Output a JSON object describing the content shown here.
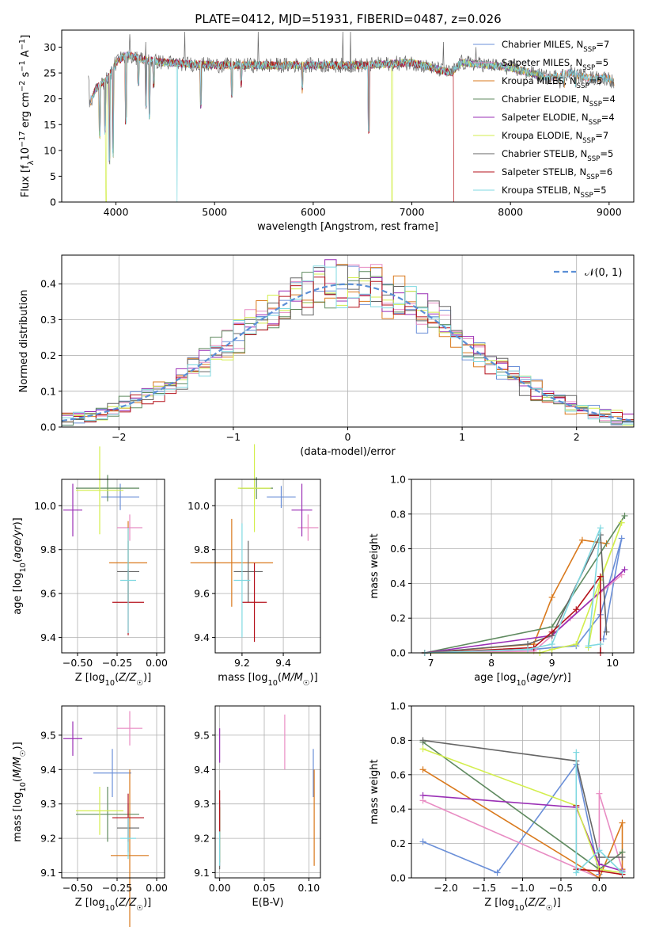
{
  "figure_title": "PLATE=0412, MJD=51931, FIBERID=0487, z=0.026",
  "colors": [
    "#6a8fd8",
    "#e88cc3",
    "#d9791c",
    "#5f8a5f",
    "#9a2fb5",
    "#d3ee4d",
    "#666666",
    "#b5121b",
    "#7fd8e0"
  ],
  "chart_data": [
    {
      "id": "spectrum",
      "type": "line",
      "xlabel": "wavelength [Angstrom, rest frame]",
      "ylabel": "Flux [f_λ 10^-17 erg cm^-2 s^-1 A^-1]",
      "xlim": [
        3450,
        9250
      ],
      "ylim": [
        0,
        33.3
      ],
      "xticks": [
        4000,
        5000,
        6000,
        7000,
        8000,
        9000
      ],
      "yticks": [
        0,
        5,
        10,
        15,
        20,
        25,
        30
      ],
      "grid": false,
      "legend_position": "top-right",
      "series": [
        {
          "name": "Chabrier MILES, N_SSP=7"
        },
        {
          "name": "Salpeter MILES, N_SSP=5"
        },
        {
          "name": "Kroupa MILES, N_SSP=5"
        },
        {
          "name": "Chabrier ELODIE, N_SSP=4"
        },
        {
          "name": "Salpeter ELODIE, N_SSP=4"
        },
        {
          "name": "Kroupa ELODIE, N_SSP=7"
        },
        {
          "name": "Chabrier STELIB, N_SSP=5"
        },
        {
          "name": "Salpeter STELIB, N_SSP=6"
        },
        {
          "name": "Kroupa STELIB, N_SSP=5"
        }
      ],
      "continuum": [
        [
          3730,
          19
        ],
        [
          3800,
          22
        ],
        [
          3900,
          23.5
        ],
        [
          4000,
          27
        ],
        [
          4100,
          28.5
        ],
        [
          4300,
          27.5
        ],
        [
          4500,
          27
        ],
        [
          5000,
          26.5
        ],
        [
          5500,
          26.5
        ],
        [
          6000,
          26.5
        ],
        [
          6500,
          26.5
        ],
        [
          7000,
          27
        ],
        [
          7200,
          26
        ],
        [
          7400,
          25
        ],
        [
          7500,
          27
        ],
        [
          7800,
          26.5
        ],
        [
          8000,
          26
        ],
        [
          8200,
          25
        ],
        [
          8400,
          24
        ],
        [
          8600,
          25
        ],
        [
          8800,
          24
        ],
        [
          9000,
          24
        ],
        [
          9050,
          23
        ]
      ],
      "absorption_dips": [
        [
          3835,
          12
        ],
        [
          3890,
          13
        ],
        [
          3934,
          7
        ],
        [
          3970,
          8.5
        ],
        [
          4101,
          15
        ],
        [
          4227,
          22
        ],
        [
          4304,
          18
        ],
        [
          4340,
          16
        ],
        [
          4383,
          22
        ],
        [
          4861,
          18
        ],
        [
          5175,
          20
        ],
        [
          5270,
          22
        ],
        [
          5890,
          21
        ],
        [
          6563,
          13
        ],
        [
          8498,
          22
        ],
        [
          8542,
          22
        ],
        [
          8662,
          22
        ]
      ],
      "emission_spikes": [
        [
          4140,
          32.5
        ],
        [
          4300,
          31
        ],
        [
          4700,
          33
        ],
        [
          5440,
          33
        ],
        [
          6300,
          33
        ],
        [
          6380,
          33
        ],
        [
          7320,
          31
        ],
        [
          7650,
          30
        ]
      ],
      "drops_to_zero": [
        [
          3900,
          "Kroupa ELODIE"
        ],
        [
          4620,
          "Kroupa STELIB"
        ],
        [
          6800,
          "Kroupa ELODIE"
        ],
        [
          7430,
          "Salpeter STELIB"
        ]
      ]
    },
    {
      "id": "residuals",
      "type": "histogram",
      "xlabel": "(data-model)/error",
      "ylabel": "Normed distribution",
      "xlim": [
        -2.5,
        2.5
      ],
      "ylim": [
        0,
        0.48
      ],
      "xticks": [
        -2,
        -1,
        0,
        1,
        2
      ],
      "yticks": [
        0.0,
        0.1,
        0.2,
        0.3,
        0.4
      ],
      "grid": true,
      "legend_position": "top-right",
      "reference_curve": {
        "name": "𝒩(0, 1)",
        "mean": 0,
        "sigma": 1
      },
      "bin_width": 0.1,
      "scatter_amplitude": 0.02
    },
    {
      "id": "age_vs_Z",
      "type": "errorbar",
      "xlabel": "Z [log10(Z/Z☉)]",
      "ylabel": "age [log10(age/yr)]",
      "xlim": [
        -0.6,
        0.05
      ],
      "ylim": [
        9.33,
        10.12
      ],
      "xticks": [
        -0.5,
        -0.25,
        0.0
      ],
      "xticklabels": [
        "−0.50",
        "−0.25",
        "0.00"
      ],
      "yticks": [
        9.4,
        9.6,
        9.8,
        10.0
      ],
      "grid": true,
      "points": [
        {
          "x": -0.23,
          "y": 10.04,
          "xerr": 0.12,
          "yerr": 0.06
        },
        {
          "x": -0.17,
          "y": 9.9,
          "xerr": 0.08,
          "yerr": 0.06
        },
        {
          "x": -0.18,
          "y": 9.74,
          "xerr": 0.12,
          "yerr": 0.19
        },
        {
          "x": -0.31,
          "y": 10.08,
          "xerr": 0.2,
          "yerr": 0.06
        },
        {
          "x": -0.53,
          "y": 9.98,
          "xerr": 0.06,
          "yerr": 0.12
        },
        {
          "x": -0.36,
          "y": 10.07,
          "xerr": 0.15,
          "yerr": 0.2
        },
        {
          "x": -0.18,
          "y": 9.7,
          "xerr": 0.07,
          "yerr": 0.14
        },
        {
          "x": -0.18,
          "y": 9.56,
          "xerr": 0.1,
          "yerr": 0.15
        },
        {
          "x": -0.18,
          "y": 9.66,
          "xerr": 0.05,
          "yerr": 0.24
        }
      ]
    },
    {
      "id": "age_vs_mass",
      "type": "errorbar",
      "xlabel": "mass [log10(M/M☉)]",
      "ylabel": "",
      "xlim": [
        9.07,
        9.58
      ],
      "ylim": [
        9.33,
        10.12
      ],
      "xticks": [
        9.2,
        9.4
      ],
      "xticklabels": [
        "9.2",
        "9.4"
      ],
      "yticks": [
        9.4,
        9.6,
        9.8,
        10.0
      ],
      "grid": true,
      "points": [
        {
          "x": 9.39,
          "y": 10.04,
          "xerr": 0.07,
          "yerr": 0.05
        },
        {
          "x": 9.52,
          "y": 9.9,
          "xerr": 0.05,
          "yerr": 0.06
        },
        {
          "x": 9.15,
          "y": 9.74,
          "xerr": 0.2,
          "yerr": 0.2
        },
        {
          "x": 9.27,
          "y": 10.08,
          "xerr": 0.08,
          "yerr": 0.05
        },
        {
          "x": 9.49,
          "y": 9.98,
          "xerr": 0.05,
          "yerr": 0.12
        },
        {
          "x": 9.26,
          "y": 10.08,
          "xerr": 0.08,
          "yerr": 0.2
        },
        {
          "x": 9.23,
          "y": 9.7,
          "xerr": 0.07,
          "yerr": 0.14
        },
        {
          "x": 9.26,
          "y": 9.56,
          "xerr": 0.06,
          "yerr": 0.18
        },
        {
          "x": 9.2,
          "y": 9.66,
          "xerr": 0.04,
          "yerr": 0.26
        }
      ]
    },
    {
      "id": "massweight_vs_age",
      "type": "line",
      "xlabel": "age [log10(age/yr)]",
      "ylabel": "mass weight",
      "xlim": [
        6.68,
        10.35
      ],
      "ylim": [
        0,
        1.0
      ],
      "xticks": [
        7,
        8,
        9,
        10
      ],
      "yticks": [
        0.0,
        0.2,
        0.4,
        0.6,
        0.8,
        1.0
      ],
      "grid": true,
      "series": [
        {
          "x": [
            6.9,
            8.7,
            9.0,
            9.4,
            9.8,
            10.15,
            9.85
          ],
          "y": [
            0.0,
            0.02,
            0.03,
            0.04,
            0.22,
            0.66,
            0.08
          ]
        },
        {
          "x": [
            6.9,
            8.7,
            9.0,
            9.3,
            10.15
          ],
          "y": [
            0.0,
            0.01,
            0.1,
            0.2,
            0.45
          ]
        },
        {
          "x": [
            6.9,
            8.7,
            9.0,
            9.5,
            9.9
          ],
          "y": [
            0.0,
            0.05,
            0.32,
            0.65,
            0.63
          ]
        },
        {
          "x": [
            6.9,
            9.0,
            10.2
          ],
          "y": [
            0.0,
            0.15,
            0.79
          ]
        },
        {
          "x": [
            6.9,
            9.0,
            10.2
          ],
          "y": [
            0.0,
            0.1,
            0.48
          ]
        },
        {
          "x": [
            6.9,
            8.8,
            9.0,
            9.4,
            10.15,
            9.8,
            9.6
          ],
          "y": [
            0.0,
            0.0,
            0.02,
            0.05,
            0.75,
            0.42,
            0.03
          ]
        },
        {
          "x": [
            6.9,
            8.6,
            9.0,
            9.8,
            9.9
          ],
          "y": [
            0.0,
            0.05,
            0.1,
            0.68,
            0.12
          ]
        },
        {
          "x": [
            6.9,
            8.7,
            9.0,
            9.4,
            9.8,
            9.8
          ],
          "y": [
            0.0,
            0.03,
            0.12,
            0.25,
            0.44,
            0.0
          ]
        },
        {
          "x": [
            6.9,
            8.6,
            9.0,
            9.8,
            9.6,
            9.8
          ],
          "y": [
            0.0,
            0.02,
            0.05,
            0.72,
            0.04,
            0.05
          ]
        }
      ]
    },
    {
      "id": "mass_vs_Z",
      "type": "errorbar",
      "xlabel": "Z [log10(Z/Z☉)]",
      "ylabel": "mass [log10(M/M☉)]",
      "xlim": [
        -0.6,
        0.05
      ],
      "ylim": [
        9.085,
        9.585
      ],
      "xticks": [
        -0.5,
        -0.25,
        0.0
      ],
      "xticklabels": [
        "−0.50",
        "−0.25",
        "0.00"
      ],
      "yticks": [
        9.1,
        9.2,
        9.3,
        9.4,
        9.5
      ],
      "grid": true,
      "points": [
        {
          "x": -0.28,
          "y": 9.39,
          "xerr": 0.12,
          "yerr": 0.07
        },
        {
          "x": -0.17,
          "y": 9.52,
          "xerr": 0.08,
          "yerr": 0.05
        },
        {
          "x": -0.17,
          "y": 9.15,
          "xerr": 0.12,
          "yerr": 0.25
        },
        {
          "x": -0.31,
          "y": 9.27,
          "xerr": 0.2,
          "yerr": 0.08
        },
        {
          "x": -0.53,
          "y": 9.49,
          "xerr": 0.06,
          "yerr": 0.05
        },
        {
          "x": -0.36,
          "y": 9.28,
          "xerr": 0.15,
          "yerr": 0.07
        },
        {
          "x": -0.18,
          "y": 9.23,
          "xerr": 0.07,
          "yerr": 0.07
        },
        {
          "x": -0.18,
          "y": 9.26,
          "xerr": 0.1,
          "yerr": 0.07
        },
        {
          "x": -0.18,
          "y": 9.2,
          "xerr": 0.05,
          "yerr": 0.06
        }
      ]
    },
    {
      "id": "mass_vs_EBV",
      "type": "errorbar",
      "xlabel": "E(B-V)",
      "ylabel": "",
      "xlim": [
        -0.005,
        0.113
      ],
      "ylim": [
        9.085,
        9.585
      ],
      "xticks": [
        0.0,
        0.05,
        0.1
      ],
      "xticklabels": [
        "0.00",
        "0.05",
        "0.10"
      ],
      "yticks": [
        9.1,
        9.2,
        9.3,
        9.4,
        9.5
      ],
      "grid": true,
      "points": [
        {
          "x": 0.105,
          "y": 9.39,
          "xerr": 0,
          "yerr": 0.07
        },
        {
          "x": 0.073,
          "y": 9.48,
          "xerr": 0,
          "yerr": 0.08
        },
        {
          "x": 0.106,
          "y": 9.26,
          "xerr": 0,
          "yerr": 0.14
        },
        {
          "x": 0.0,
          "y": 9.21,
          "xerr": 0,
          "yerr": 0.08
        },
        {
          "x": 0.0,
          "y": 9.47,
          "xerr": 0,
          "yerr": 0.05
        },
        {
          "x": 0.0,
          "y": 9.21,
          "xerr": 0,
          "yerr": 0.08
        },
        {
          "x": 0.0,
          "y": 9.21,
          "xerr": 0,
          "yerr": 0.1
        },
        {
          "x": 0.0,
          "y": 9.28,
          "xerr": 0,
          "yerr": 0.06
        },
        {
          "x": 0.0,
          "y": 9.17,
          "xerr": 0,
          "yerr": 0.05
        }
      ]
    },
    {
      "id": "massweight_vs_Z",
      "type": "line",
      "xlabel": "Z [log10(Z/Z☉)]",
      "ylabel": "mass weight",
      "xlim": [
        -2.45,
        0.45
      ],
      "ylim": [
        0,
        1.0
      ],
      "xticks": [
        -2.0,
        -1.5,
        -1.0,
        -0.5,
        0.0
      ],
      "xticklabels": [
        "−2.0",
        "−1.5",
        "−1.0",
        "−0.5",
        "0.0"
      ],
      "yticks": [
        0.0,
        0.2,
        0.4,
        0.6,
        0.8,
        1.0
      ],
      "grid": true,
      "series": [
        {
          "x": [
            -2.3,
            -1.33,
            -0.3,
            0.0,
            0.0
          ],
          "y": [
            0.21,
            0.03,
            0.66,
            0.02,
            0.08
          ]
        },
        {
          "x": [
            -2.3,
            0.0,
            0.0,
            0.3,
            0.3
          ],
          "y": [
            0.45,
            0.0,
            0.49,
            0.05,
            0.03
          ]
        },
        {
          "x": [
            -2.3,
            0.0,
            0.3,
            0.3
          ],
          "y": [
            0.63,
            0.0,
            0.32,
            0.05
          ]
        },
        {
          "x": [
            -2.3,
            0.0,
            0.3
          ],
          "y": [
            0.79,
            0.05,
            0.15
          ]
        },
        {
          "x": [
            -2.3,
            -0.3,
            0.0,
            0.3
          ],
          "y": [
            0.48,
            0.41,
            0.08,
            0.04
          ]
        },
        {
          "x": [
            -2.3,
            -0.3,
            0.0,
            0.3
          ],
          "y": [
            0.75,
            0.42,
            0.05,
            0.03
          ]
        },
        {
          "x": [
            -2.3,
            -0.3,
            0.0,
            0.3
          ],
          "y": [
            0.8,
            0.68,
            0.12,
            0.12
          ]
        },
        {
          "x": [
            -0.3,
            -0.3,
            0.0,
            0.3
          ],
          "y": [
            0.42,
            0.05,
            0.04,
            0.02
          ]
        },
        {
          "x": [
            -0.3,
            -0.3,
            0.0,
            0.3
          ],
          "y": [
            0.73,
            0.03,
            0.16,
            0.03
          ]
        }
      ]
    }
  ]
}
